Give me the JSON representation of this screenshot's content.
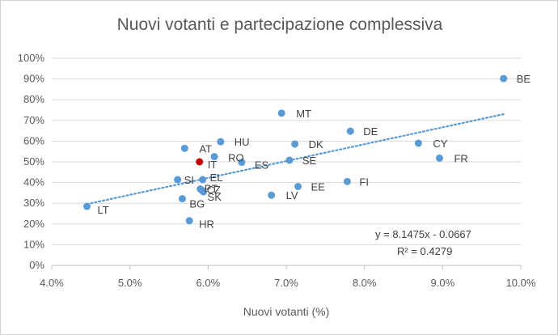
{
  "chart_data": {
    "type": "scatter",
    "title": "Nuovi votanti e partecipazione  complessiva",
    "xlabel": "Nuovi votanti (%)",
    "ylabel": "",
    "xlim": [
      0.04,
      0.1
    ],
    "ylim": [
      0,
      1
    ],
    "x_ticks": [
      0.04,
      0.05,
      0.06,
      0.07,
      0.08,
      0.09,
      0.1
    ],
    "x_tick_labels": [
      "4.0%",
      "5.0%",
      "6.0%",
      "7.0%",
      "8.0%",
      "9.0%",
      "10.0%"
    ],
    "y_ticks": [
      0,
      0.1,
      0.2,
      0.3,
      0.4,
      0.5,
      0.6,
      0.7,
      0.8,
      0.9,
      1.0
    ],
    "y_tick_labels": [
      "0%",
      "10%",
      "20%",
      "30%",
      "40%",
      "50%",
      "60%",
      "70%",
      "80%",
      "90%",
      "100%"
    ],
    "grid": "horizontal",
    "point_color": "#5b9bd5",
    "highlight_color": "#c00000",
    "trend_color": "#5b9bd5",
    "trendline": {
      "slope": 8.1475,
      "intercept": -0.0667,
      "x_range": [
        0.0445,
        0.098
      ]
    },
    "equation": "y = 8.1475x  - 0.0667",
    "r2": "R² = 0.4279",
    "points": [
      {
        "label": "BE",
        "x": 0.0978,
        "y": 0.902
      },
      {
        "label": "MT",
        "x": 0.0694,
        "y": 0.735
      },
      {
        "label": "DE",
        "x": 0.0782,
        "y": 0.648
      },
      {
        "label": "HU",
        "x": 0.0616,
        "y": 0.597
      },
      {
        "label": "CY",
        "x": 0.0869,
        "y": 0.59
      },
      {
        "label": "DK",
        "x": 0.0711,
        "y": 0.586
      },
      {
        "label": "AT",
        "x": 0.057,
        "y": 0.565
      },
      {
        "label": "RO",
        "x": 0.0608,
        "y": 0.525
      },
      {
        "label": "FR",
        "x": 0.0896,
        "y": 0.518
      },
      {
        "label": "SE",
        "x": 0.0704,
        "y": 0.508
      },
      {
        "label": "IT",
        "x": 0.0589,
        "y": 0.5,
        "highlight": true
      },
      {
        "label": "ES",
        "x": 0.0643,
        "y": 0.498
      },
      {
        "label": "SI",
        "x": 0.0561,
        "y": 0.414
      },
      {
        "label": "EL",
        "x": 0.0593,
        "y": 0.414
      },
      {
        "label": "FI",
        "x": 0.0778,
        "y": 0.405
      },
      {
        "label": "EE",
        "x": 0.0715,
        "y": 0.381
      },
      {
        "label": "PT",
        "x": 0.059,
        "y": 0.369
      },
      {
        "label": "CZ",
        "x": 0.0592,
        "y": 0.363
      },
      {
        "label": "SK",
        "x": 0.0594,
        "y": 0.355
      },
      {
        "label": "LV",
        "x": 0.0681,
        "y": 0.339
      },
      {
        "label": "BG",
        "x": 0.0567,
        "y": 0.322
      },
      {
        "label": "LT",
        "x": 0.0445,
        "y": 0.285
      },
      {
        "label": "HR",
        "x": 0.0576,
        "y": 0.216
      }
    ]
  }
}
